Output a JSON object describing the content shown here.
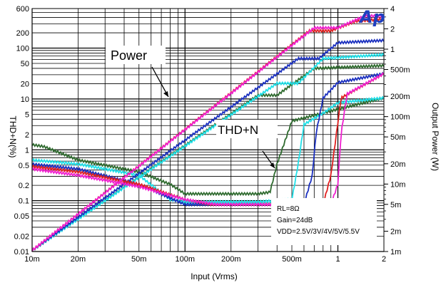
{
  "chart_data": {
    "type": "line",
    "x_axis": {
      "label": "Input (Vrms)",
      "scale": "log",
      "range": [
        0.01,
        2
      ],
      "ticks": [
        [
          0.01,
          "10m"
        ],
        [
          0.02,
          "20m"
        ],
        [
          0.05,
          "50m"
        ],
        [
          0.1,
          "100m"
        ],
        [
          0.2,
          "200m"
        ],
        [
          0.5,
          "500m"
        ],
        [
          1,
          "1"
        ],
        [
          2,
          "2"
        ]
      ]
    },
    "y_left": {
      "label": "THD+N(%)",
      "scale": "log",
      "range": [
        0.01,
        600
      ],
      "ticks": [
        [
          600,
          "600"
        ],
        [
          200,
          "200"
        ],
        [
          100,
          "100"
        ],
        [
          50,
          "50"
        ],
        [
          20,
          "20"
        ],
        [
          10,
          "10"
        ],
        [
          5,
          "5"
        ],
        [
          2,
          "2"
        ],
        [
          1,
          "1"
        ],
        [
          0.5,
          "0.5"
        ],
        [
          0.2,
          "0.2"
        ],
        [
          0.1,
          "0.1"
        ],
        [
          0.05,
          "0.05"
        ],
        [
          0.02,
          "0.02"
        ],
        [
          0.01,
          "0.01"
        ]
      ]
    },
    "y_right": {
      "label": "Output Power (W)",
      "scale": "log",
      "range": [
        0.001,
        4
      ],
      "ticks": [
        [
          4,
          "4"
        ],
        [
          2,
          "2"
        ],
        [
          1,
          "1"
        ],
        [
          0.5,
          "500m"
        ],
        [
          0.2,
          "200m"
        ],
        [
          0.1,
          "100m"
        ],
        [
          0.05,
          "50m"
        ],
        [
          0.02,
          "20m"
        ],
        [
          0.01,
          "10m"
        ],
        [
          0.005,
          "5m"
        ],
        [
          0.002,
          "2m"
        ],
        [
          0.001,
          "1m"
        ]
      ]
    },
    "grid": true,
    "logo": "Ap",
    "annotations": [
      {
        "text": "Power",
        "target": "power curves"
      },
      {
        "text": "THD+N",
        "target": "THD+N curves"
      }
    ],
    "conditions": [
      "RL=8Ω",
      "Gain=24dB",
      "VDD=2.5V/3V/4V/5V/5.5V"
    ],
    "series": [
      {
        "color": "#2f6b2f",
        "power": {
          "x": [
            0.01,
            0.3,
            0.4,
            0.7,
            2
          ],
          "y": [
            0.001,
            0.2,
            0.2,
            0.5,
            0.55
          ]
        },
        "thd": {
          "x": [
            0.01,
            0.012,
            0.02,
            0.05,
            0.08,
            0.1,
            0.3,
            0.36,
            0.4,
            0.5,
            1,
            2
          ],
          "y": [
            1.2,
            1.1,
            0.6,
            0.35,
            0.2,
            0.13,
            0.13,
            0.14,
            0.5,
            3.5,
            6,
            10
          ]
        }
      },
      {
        "color": "#20e0e8",
        "power": {
          "x": [
            0.01,
            0.4,
            0.55,
            0.8,
            2
          ],
          "y": [
            0.001,
            0.3,
            0.3,
            0.7,
            0.8
          ]
        },
        "thd": {
          "x": [
            0.01,
            0.02,
            0.05,
            0.08,
            0.1,
            0.3,
            0.5,
            0.55,
            0.6,
            0.8,
            1,
            2
          ],
          "y": [
            0.6,
            0.5,
            0.3,
            0.1,
            0.09,
            0.09,
            0.1,
            0.5,
            3,
            5,
            8,
            10
          ]
        }
      },
      {
        "color": "#1a2fbf",
        "power": {
          "x": [
            0.01,
            0.55,
            0.75,
            1,
            2
          ],
          "y": [
            0.001,
            0.7,
            0.7,
            1.2,
            1.3
          ]
        },
        "thd": {
          "x": [
            0.01,
            0.02,
            0.05,
            0.1,
            0.12,
            0.5,
            0.6,
            0.68,
            0.72,
            0.8,
            1,
            2
          ],
          "y": [
            0.5,
            0.4,
            0.2,
            0.08,
            0.08,
            0.08,
            0.08,
            0.3,
            2,
            10,
            20,
            30
          ]
        }
      },
      {
        "color": "#e02020",
        "power": {
          "x": [
            0.01,
            0.65,
            0.9,
            1.3,
            2
          ],
          "y": [
            0.001,
            1.8,
            1.8,
            2.5,
            2.7
          ]
        },
        "thd": {
          "x": [
            0.01,
            0.02,
            0.05,
            0.1,
            0.15,
            0.6,
            0.8,
            0.9,
            0.95,
            1.05,
            2
          ],
          "y": [
            0.45,
            0.35,
            0.2,
            0.1,
            0.08,
            0.08,
            0.08,
            0.3,
            1,
            10,
            30
          ]
        }
      },
      {
        "color": "#f020d0",
        "power": {
          "x": [
            0.01,
            0.7,
            1,
            1.5,
            2
          ],
          "y": [
            0.001,
            2,
            2,
            3,
            3
          ]
        },
        "thd": {
          "x": [
            0.01,
            0.02,
            0.05,
            0.1,
            0.16,
            0.7,
            0.9,
            1,
            1.05,
            1.15,
            2
          ],
          "y": [
            0.4,
            0.3,
            0.18,
            0.1,
            0.08,
            0.08,
            0.08,
            0.2,
            2,
            12,
            30
          ]
        }
      }
    ]
  }
}
